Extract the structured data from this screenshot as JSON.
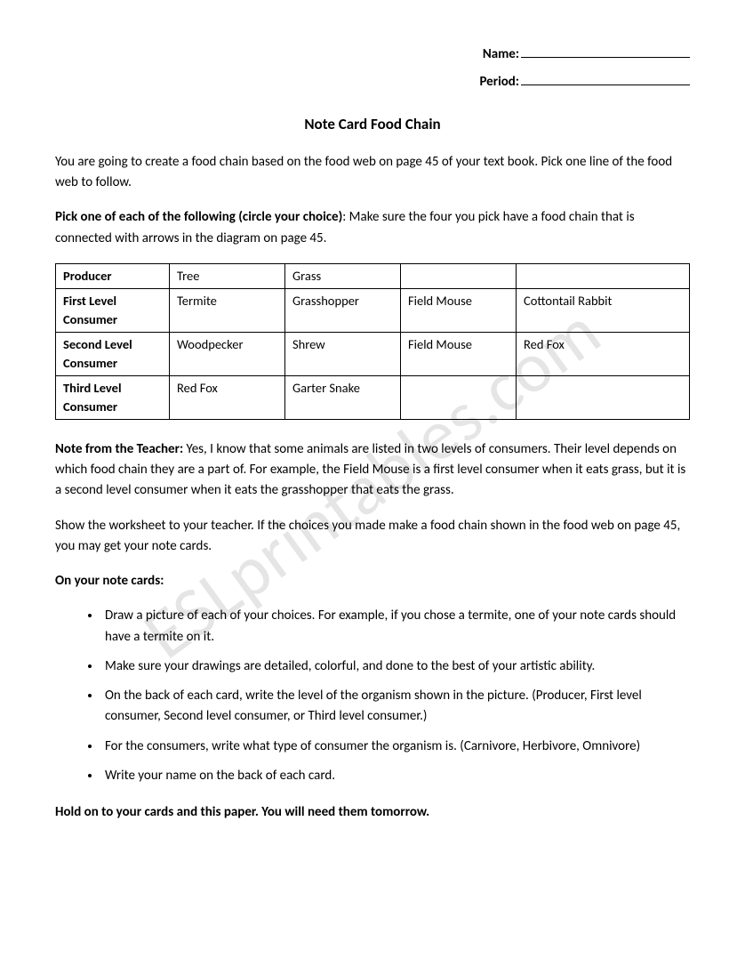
{
  "header": {
    "name_label": "Name:",
    "period_label": "Period:"
  },
  "title": "Note Card Food Chain",
  "intro": "You are going to create a food chain based on the food web on page 45 of your text book.  Pick one line of the food web to follow.",
  "pick_section": {
    "label": "Pick one of each of the following (circle your choice)",
    "rest": ":  Make sure the four you pick have a food chain that is connected with arrows in the diagram on page 45."
  },
  "table": {
    "rows": [
      {
        "level": "Producer",
        "c1": "Tree",
        "c2": "Grass",
        "c3": "",
        "c4": ""
      },
      {
        "level": "First Level Consumer",
        "c1": "Termite",
        "c2": "Grasshopper",
        "c3": "Field Mouse",
        "c4": "Cottontail Rabbit"
      },
      {
        "level": "Second Level Consumer",
        "c1": "Woodpecker",
        "c2": "Shrew",
        "c3": "Field Mouse",
        "c4": "Red Fox"
      },
      {
        "level": "Third Level Consumer",
        "c1": "Red Fox",
        "c2": "Garter Snake",
        "c3": "",
        "c4": ""
      }
    ]
  },
  "teacher_note": {
    "label": "Note from the Teacher:",
    "text": " Yes, I know that some animals are listed in two levels of consumers.  Their level depends on which food chain they are a part of.  For example, the Field Mouse is a first level consumer when it eats grass, but it is a second level consumer when it eats the grasshopper that eats the grass."
  },
  "show_worksheet": "Show the worksheet to your teacher.  If the choices you made make a food chain shown in the food web on page 45, you may get your note cards.",
  "notecards_label": "On your note cards:",
  "bullets": [
    "Draw a picture of each of your choices.  For example, if you chose a termite, one of your note cards should have a termite on it.",
    "Make sure your drawings are detailed, colorful, and done to the best of your artistic ability.",
    "On the back of each card, write the level of the organism shown in the picture. (Producer, First level consumer, Second level consumer, or Third level consumer.)",
    "For the consumers, write what type of consumer the organism is. (Carnivore, Herbivore, Omnivore)",
    "Write your name on the back of each card."
  ],
  "closing": "Hold on to your cards and this paper.  You will need them tomorrow.",
  "watermark_text": "ESLprintables.com"
}
